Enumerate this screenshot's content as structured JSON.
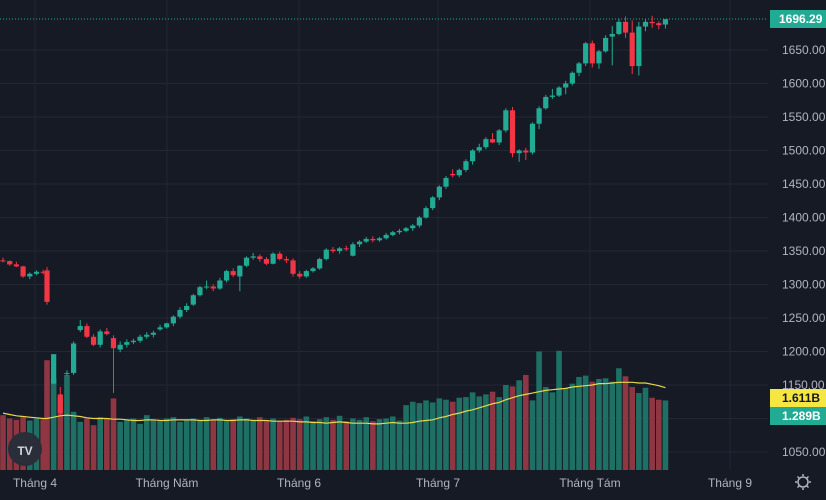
{
  "chart_data": {
    "type": "candlestick",
    "colors": {
      "background": "#161a25",
      "grid": "#232733",
      "up": "#22ab94",
      "down": "#f23645",
      "vol_up": "#1e6f64",
      "vol_down": "#8e3642",
      "ma": "#e6d74b",
      "last_price": "#22ab94",
      "ma_label": "#f5e642"
    },
    "x_ticks": [
      "Tháng 4",
      "Tháng Năm",
      "Tháng 6",
      "Tháng 7",
      "Tháng Tám",
      "Tháng 9"
    ],
    "y_ticks": [
      "1650.00",
      "1600.00",
      "1550.00",
      "1500.00",
      "1450.00",
      "1400.00",
      "1350.00",
      "1300.00",
      "1250.00",
      "1200.00",
      "1150.00",
      "1100.00",
      "1050.00"
    ],
    "y_range": [
      1030,
      1710
    ],
    "last_price": "1696.29",
    "volume_labels": {
      "ma": "1.611B",
      "last": "1.289B"
    },
    "logo_text": "TV",
    "candles": [
      [
        1336,
        1340,
        1333,
        1335
      ],
      [
        1335,
        1336,
        1328,
        1330
      ],
      [
        1330,
        1334,
        1326,
        1327
      ],
      [
        1327,
        1328,
        1310,
        1312
      ],
      [
        1312,
        1318,
        1308,
        1316
      ],
      [
        1316,
        1321,
        1314,
        1319
      ],
      [
        1319,
        1322,
        1315,
        1318
      ],
      [
        1321,
        1326,
        1270,
        1274
      ],
      [
        1152,
        1196,
        1151,
        1196
      ],
      [
        1136,
        1147,
        1105,
        1108
      ],
      [
        1168,
        1172,
        1164,
        1168
      ],
      [
        1168,
        1215,
        1165,
        1212
      ],
      [
        1232,
        1247,
        1229,
        1238
      ],
      [
        1238,
        1242,
        1220,
        1222
      ],
      [
        1222,
        1226,
        1208,
        1210
      ],
      [
        1210,
        1233,
        1206,
        1230
      ],
      [
        1230,
        1235,
        1224,
        1226
      ],
      [
        1220,
        1224,
        1138,
        1205
      ],
      [
        1203,
        1215,
        1199,
        1210
      ],
      [
        1210,
        1218,
        1206,
        1214
      ],
      [
        1214,
        1219,
        1211,
        1216
      ],
      [
        1216,
        1225,
        1213,
        1222
      ],
      [
        1222,
        1229,
        1219,
        1225
      ],
      [
        1225,
        1231,
        1221,
        1228
      ],
      [
        1233,
        1240,
        1231,
        1236
      ],
      [
        1236,
        1243,
        1234,
        1242
      ],
      [
        1242,
        1254,
        1238,
        1252
      ],
      [
        1252,
        1266,
        1249,
        1262
      ],
      [
        1262,
        1272,
        1259,
        1268
      ],
      [
        1270,
        1286,
        1268,
        1284
      ],
      [
        1284,
        1298,
        1282,
        1296
      ],
      [
        1296,
        1306,
        1293,
        1297
      ],
      [
        1297,
        1300,
        1290,
        1294
      ],
      [
        1294,
        1310,
        1292,
        1306
      ],
      [
        1306,
        1322,
        1303,
        1320
      ],
      [
        1320,
        1324,
        1311,
        1314
      ],
      [
        1312,
        1329,
        1290,
        1328
      ],
      [
        1328,
        1342,
        1326,
        1340
      ],
      [
        1340,
        1347,
        1337,
        1342
      ],
      [
        1342,
        1345,
        1334,
        1338
      ],
      [
        1338,
        1341,
        1329,
        1331
      ],
      [
        1331,
        1348,
        1330,
        1346
      ],
      [
        1346,
        1349,
        1336,
        1338
      ],
      [
        1338,
        1342,
        1332,
        1336
      ],
      [
        1336,
        1339,
        1312,
        1316
      ],
      [
        1316,
        1320,
        1309,
        1312
      ],
      [
        1312,
        1322,
        1310,
        1320
      ],
      [
        1320,
        1326,
        1318,
        1324
      ],
      [
        1324,
        1340,
        1322,
        1338
      ],
      [
        1338,
        1354,
        1336,
        1352
      ],
      [
        1352,
        1356,
        1347,
        1350
      ],
      [
        1350,
        1356,
        1346,
        1354
      ],
      [
        1354,
        1358,
        1350,
        1353
      ],
      [
        1343,
        1363,
        1342,
        1360
      ],
      [
        1360,
        1366,
        1356,
        1364
      ],
      [
        1364,
        1371,
        1362,
        1368
      ],
      [
        1368,
        1372,
        1363,
        1366
      ],
      [
        1366,
        1371,
        1364,
        1369
      ],
      [
        1369,
        1377,
        1367,
        1374
      ],
      [
        1374,
        1380,
        1372,
        1378
      ],
      [
        1378,
        1383,
        1375,
        1380
      ],
      [
        1380,
        1386,
        1378,
        1384
      ],
      [
        1384,
        1390,
        1380,
        1388
      ],
      [
        1388,
        1402,
        1385,
        1400
      ],
      [
        1400,
        1417,
        1398,
        1414
      ],
      [
        1414,
        1432,
        1411,
        1430
      ],
      [
        1430,
        1448,
        1426,
        1446
      ],
      [
        1446,
        1462,
        1443,
        1459
      ],
      [
        1465,
        1472,
        1460,
        1463
      ],
      [
        1463,
        1473,
        1460,
        1471
      ],
      [
        1471,
        1487,
        1468,
        1484
      ],
      [
        1484,
        1502,
        1479,
        1500
      ],
      [
        1500,
        1510,
        1497,
        1505
      ],
      [
        1505,
        1520,
        1502,
        1517
      ],
      [
        1517,
        1526,
        1511,
        1512
      ],
      [
        1512,
        1532,
        1508,
        1530
      ],
      [
        1530,
        1563,
        1527,
        1560
      ],
      [
        1560,
        1565,
        1490,
        1496
      ],
      [
        1496,
        1502,
        1483,
        1500
      ],
      [
        1500,
        1504,
        1486,
        1497
      ],
      [
        1497,
        1542,
        1494,
        1540
      ],
      [
        1540,
        1566,
        1532,
        1563
      ],
      [
        1563,
        1583,
        1561,
        1580
      ],
      [
        1580,
        1592,
        1577,
        1582
      ],
      [
        1582,
        1596,
        1580,
        1594
      ],
      [
        1594,
        1604,
        1584,
        1600
      ],
      [
        1600,
        1618,
        1597,
        1616
      ],
      [
        1616,
        1632,
        1611,
        1630
      ],
      [
        1630,
        1662,
        1626,
        1660
      ],
      [
        1660,
        1664,
        1624,
        1630
      ],
      [
        1630,
        1650,
        1622,
        1648
      ],
      [
        1648,
        1672,
        1646,
        1668
      ],
      [
        1670,
        1686,
        1627,
        1674
      ],
      [
        1674,
        1697,
        1672,
        1692
      ],
      [
        1692,
        1700,
        1668,
        1676
      ],
      [
        1676,
        1694,
        1614,
        1626
      ],
      [
        1626,
        1692,
        1612,
        1685
      ],
      [
        1685,
        1697,
        1678,
        1692
      ],
      [
        1692,
        1701,
        1683,
        1690
      ],
      [
        1690,
        1693,
        1681,
        1687
      ],
      [
        1688,
        1696,
        1682,
        1696
      ]
    ],
    "volumes": [
      1105,
      1100,
      1098,
      1102,
      1097,
      1100,
      1099,
      1187,
      1160,
      1130,
      1165,
      1110,
      1095,
      1100,
      1090,
      1102,
      1100,
      1130,
      1095,
      1098,
      1100,
      1092,
      1105,
      1098,
      1096,
      1100,
      1102,
      1095,
      1098,
      1100,
      1097,
      1102,
      1098,
      1101,
      1096,
      1099,
      1103,
      1100,
      1098,
      1102,
      1097,
      1100,
      1096,
      1098,
      1101,
      1099,
      1103,
      1096,
      1099,
      1102,
      1098,
      1104,
      1096,
      1100,
      1098,
      1102,
      1096,
      1099,
      1100,
      1103,
      1097,
      1120,
      1125,
      1123,
      1127,
      1124,
      1130,
      1128,
      1125,
      1131,
      1132,
      1139,
      1133,
      1136,
      1140,
      1132,
      1150,
      1148,
      1157,
      1165,
      1127,
      1200,
      1147,
      1139,
      1201,
      1145,
      1152,
      1162,
      1164,
      1155,
      1159,
      1160,
      1155,
      1175,
      1163,
      1147,
      1138,
      1146,
      1131,
      1128,
      1127
    ]
  }
}
